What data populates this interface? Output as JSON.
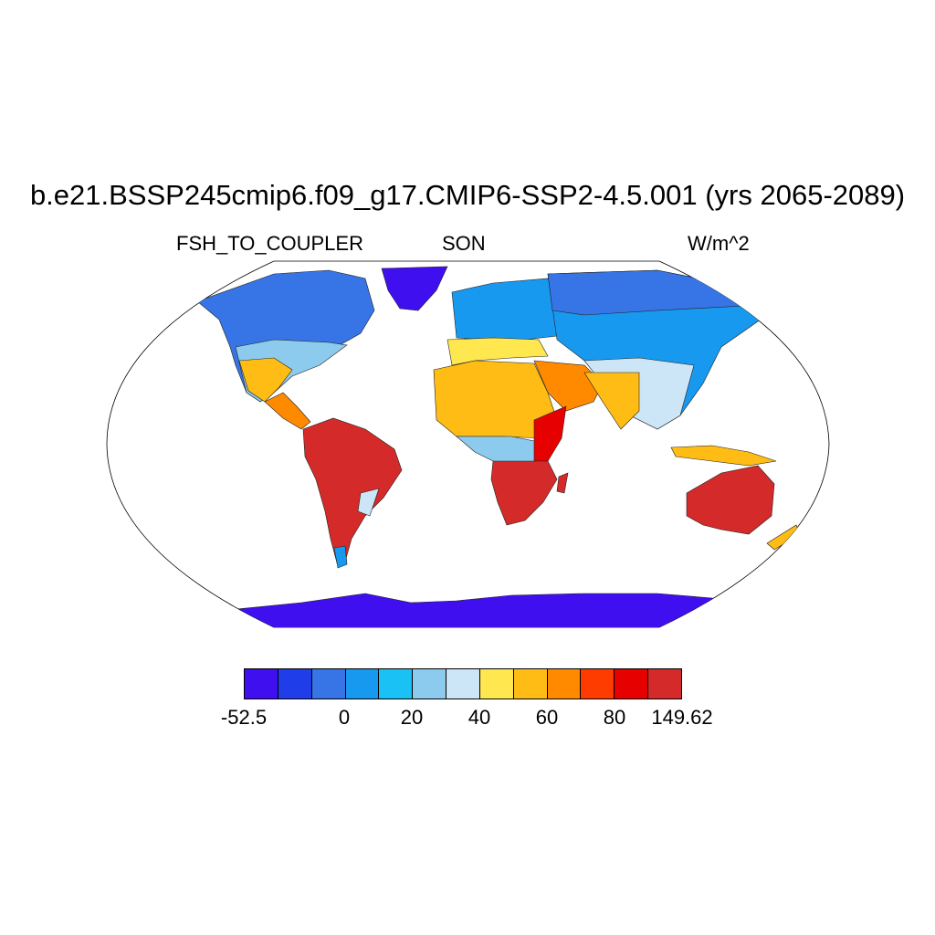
{
  "title": "b.e21.BSSP245cmip6.f09_g17.CMIP6-SSP2-4.5.001 (yrs 2065-2089)",
  "subtitle_left": "FSH_TO_COUPLER",
  "subtitle_center": "SON",
  "subtitle_right": "W/m^2",
  "colorbar": {
    "colors": [
      "#3f0ff0",
      "#1f3de8",
      "#3774e5",
      "#1799f0",
      "#19c1f5",
      "#8dcbee",
      "#cde6f7",
      "#ffe84f",
      "#ffbc14",
      "#ff8a00",
      "#ff3c00",
      "#e60000",
      "#d42a2a"
    ],
    "tick_labels": [
      "-52.5",
      "0",
      "20",
      "40",
      "60",
      "80",
      "149.62"
    ]
  }
}
